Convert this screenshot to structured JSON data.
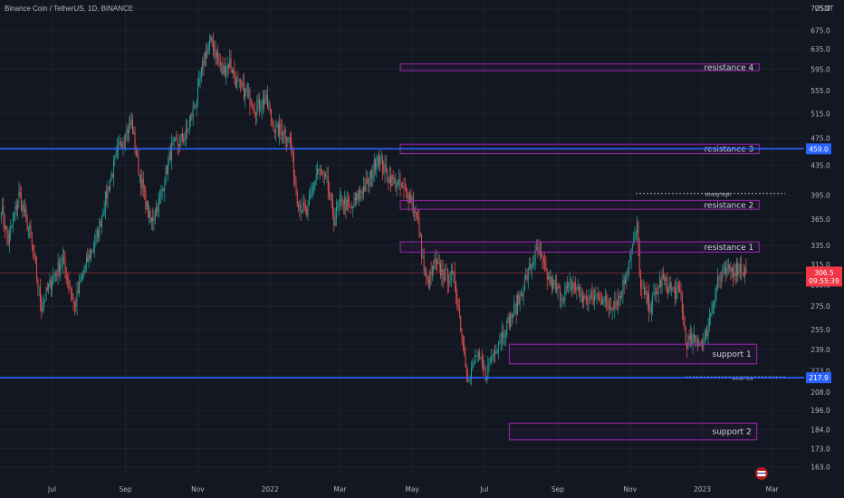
{
  "header": {
    "title": "Binance Coin / TetherUS, 1D, BINANCE"
  },
  "colors": {
    "background": "#131722",
    "grid": "#1e222d",
    "up": "#26a69a",
    "down": "#ef5350",
    "zone_border": "#9c27b0",
    "level_line": "#2962ff",
    "axis_text": "#b2b5be",
    "price_tag": "#f23645",
    "level_tag": "#2962ff"
  },
  "chart_data": {
    "type": "candlestick",
    "title": "Binance Coin / TetherUS, 1D, BINANCE",
    "currency_label": "USDT",
    "y_scale": "log",
    "ylim": [
      160,
      745
    ],
    "y_ticks": [
      "725.0",
      "675.0",
      "635.0",
      "595.0",
      "555.0",
      "515.0",
      "475.0",
      "435.0",
      "395.0",
      "365.0",
      "335.0",
      "315.0",
      "295.0",
      "275.0",
      "255.0",
      "239.0",
      "223.0",
      "208.0",
      "196.0",
      "184.0",
      "173.0",
      "163.0"
    ],
    "x_ticks": [
      "Jul",
      "Sep",
      "Nov",
      "2022",
      "Mar",
      "May",
      "Jul",
      "Sep",
      "Nov",
      "2023",
      "Mar"
    ],
    "x_range": [
      "2021-05-18",
      "2023-03-28"
    ],
    "close_path": [
      [
        "2021-05-19",
        380
      ],
      [
        "2021-05-25",
        340
      ],
      [
        "2021-06-03",
        395
      ],
      [
        "2021-06-12",
        350
      ],
      [
        "2021-06-22",
        275
      ],
      [
        "2021-07-01",
        300
      ],
      [
        "2021-07-10",
        320
      ],
      [
        "2021-07-20",
        275
      ],
      [
        "2021-07-28",
        310
      ],
      [
        "2021-08-08",
        345
      ],
      [
        "2021-08-18",
        410
      ],
      [
        "2021-08-28",
        470
      ],
      [
        "2021-09-06",
        500
      ],
      [
        "2021-09-12",
        430
      ],
      [
        "2021-09-22",
        360
      ],
      [
        "2021-09-30",
        390
      ],
      [
        "2021-10-10",
        460
      ],
      [
        "2021-10-22",
        480
      ],
      [
        "2021-11-01",
        550
      ],
      [
        "2021-11-07",
        625
      ],
      [
        "2021-11-13",
        650
      ],
      [
        "2021-11-22",
        590
      ],
      [
        "2021-11-28",
        610
      ],
      [
        "2021-12-04",
        565
      ],
      [
        "2021-12-12",
        550
      ],
      [
        "2021-12-20",
        525
      ],
      [
        "2021-12-28",
        540
      ],
      [
        "2022-01-06",
        485
      ],
      [
        "2022-01-12",
        490
      ],
      [
        "2022-01-18",
        470
      ],
      [
        "2022-01-24",
        390
      ],
      [
        "2022-02-01",
        370
      ],
      [
        "2022-02-10",
        430
      ],
      [
        "2022-02-18",
        410
      ],
      [
        "2022-02-24",
        365
      ],
      [
        "2022-03-03",
        390
      ],
      [
        "2022-03-10",
        375
      ],
      [
        "2022-03-18",
        400
      ],
      [
        "2022-03-25",
        410
      ],
      [
        "2022-04-02",
        450
      ],
      [
        "2022-04-10",
        420
      ],
      [
        "2022-04-18",
        410
      ],
      [
        "2022-04-24",
        400
      ],
      [
        "2022-05-01",
        390
      ],
      [
        "2022-05-06",
        360
      ],
      [
        "2022-05-11",
        310
      ],
      [
        "2022-05-14",
        295
      ],
      [
        "2022-05-20",
        315
      ],
      [
        "2022-05-28",
        305
      ],
      [
        "2022-06-06",
        300
      ],
      [
        "2022-06-12",
        250
      ],
      [
        "2022-06-18",
        215
      ],
      [
        "2022-06-24",
        235
      ],
      [
        "2022-07-02",
        220
      ],
      [
        "2022-07-10",
        240
      ],
      [
        "2022-07-18",
        255
      ],
      [
        "2022-07-28",
        275
      ],
      [
        "2022-08-08",
        310
      ],
      [
        "2022-08-15",
        330
      ],
      [
        "2022-08-24",
        300
      ],
      [
        "2022-09-04",
        285
      ],
      [
        "2022-09-14",
        295
      ],
      [
        "2022-09-24",
        280
      ],
      [
        "2022-10-06",
        285
      ],
      [
        "2022-10-14",
        275
      ],
      [
        "2022-10-24",
        285
      ],
      [
        "2022-11-02",
        330
      ],
      [
        "2022-11-07",
        355
      ],
      [
        "2022-11-10",
        290
      ],
      [
        "2022-11-18",
        275
      ],
      [
        "2022-11-28",
        300
      ],
      [
        "2022-12-06",
        290
      ],
      [
        "2022-12-14",
        285
      ],
      [
        "2022-12-18",
        245
      ],
      [
        "2022-12-26",
        245
      ],
      [
        "2023-01-03",
        245
      ],
      [
        "2023-01-08",
        270
      ],
      [
        "2023-01-14",
        300
      ],
      [
        "2023-01-20",
        305
      ],
      [
        "2023-01-26",
        310
      ],
      [
        "2023-02-02",
        312
      ],
      [
        "2023-02-07",
        306.5
      ]
    ],
    "last_price": "306.5",
    "countdown": "09:55:39",
    "zones": [
      {
        "label": "resistance 4",
        "from": "2022-04-21",
        "to": "2023-02-18",
        "low": 592,
        "high": 605
      },
      {
        "label": "resistance 3",
        "from": "2022-04-21",
        "to": "2023-02-18",
        "low": 452,
        "high": 466
      },
      {
        "label": "resistance 2",
        "from": "2022-04-21",
        "to": "2023-02-18",
        "low": 377,
        "high": 388
      },
      {
        "label": "resistance 1",
        "from": "2022-04-21",
        "to": "2023-02-18",
        "low": 328,
        "high": 339
      },
      {
        "label": "support 1",
        "from": "2022-07-22",
        "to": "2023-02-16",
        "low": 228,
        "high": 243
      },
      {
        "label": "support 2",
        "from": "2022-07-22",
        "to": "2023-02-16",
        "low": 178,
        "high": 188
      }
    ],
    "levels": [
      {
        "price": 459.0,
        "label": "459.0"
      },
      {
        "price": 217.9,
        "label": "217.9"
      }
    ],
    "annotations": [
      {
        "label": "strong high",
        "price": 397,
        "from": "2022-11-06",
        "to": "2023-03-12"
      },
      {
        "label": "weak low",
        "price": 218.5,
        "from": "2022-12-18",
        "to": "2023-03-12"
      }
    ],
    "grid": true
  }
}
